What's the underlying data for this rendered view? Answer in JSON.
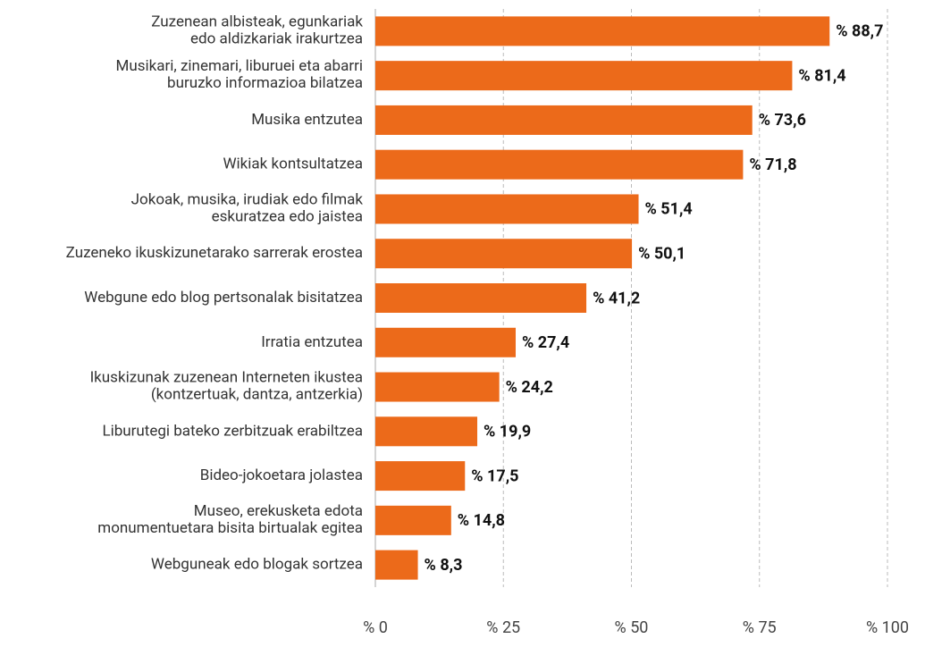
{
  "chart_data": {
    "type": "bar",
    "orientation": "horizontal",
    "categories": [
      "Zuzenean albisteak, egunkariak\nedo aldizkariak irakurtzea",
      "Musikari, zinemari, liburuei eta abarri\nburuzko informazioa bilatzea",
      "Musika entzutea",
      "Wikiak kontsultatzea",
      "Jokoak, musika, irudiak edo filmak\neskuratzea edo jaistea",
      "Zuzeneko ikuskizunetarako sarrerak erostea",
      "Webgune edo blog pertsonalak bisitatzea",
      "Irratia entzutea",
      "Ikuskizunak zuzenean Interneten ikustea\n(kontzertuak, dantza, antzerkia)",
      "Liburutegi bateko zerbitzuak erabiltzea",
      "Bideo-jokoetara jolastea",
      "Museo, erekusketa edota\nmonumentuetara bisita birtualak egitea",
      "Webguneak edo blogak sortzea"
    ],
    "values": [
      88.7,
      81.4,
      73.6,
      71.8,
      51.4,
      50.1,
      41.2,
      27.4,
      24.2,
      19.9,
      17.5,
      14.8,
      8.3
    ],
    "value_labels": [
      "% 88,7",
      "% 81,4",
      "% 73,6",
      "% 71,8",
      "% 51,4",
      "% 50,1",
      "% 41,2",
      "% 27,4",
      "% 24,2",
      "% 19,9",
      "% 17,5",
      "% 14,8",
      "% 8,3"
    ],
    "color": "#ec6a1a",
    "xlim": [
      0,
      100
    ],
    "xticks": [
      {
        "value": 0,
        "label": "% 0"
      },
      {
        "value": 25,
        "label": "% 25"
      },
      {
        "value": 50,
        "label": "% 50"
      },
      {
        "value": 75,
        "label": "% 75"
      },
      {
        "value": 100,
        "label": "% 100"
      }
    ],
    "grid": true
  }
}
